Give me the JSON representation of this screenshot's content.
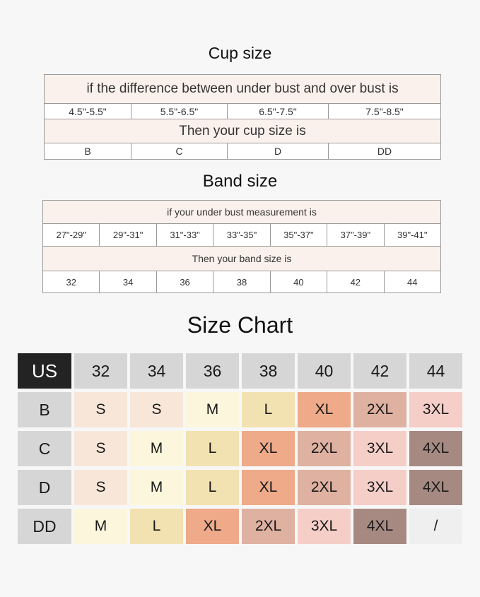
{
  "cup_size": {
    "title": "Cup size",
    "condition": "if the difference between under bust and over bust is",
    "ranges": [
      "4.5\"-5.5\"",
      "5.5\"-6.5\"",
      "6.5\"-7.5\"",
      "7.5\"-8.5\""
    ],
    "result": "Then your cup size is",
    "cups": [
      "B",
      "C",
      "D",
      "DD"
    ]
  },
  "band_size": {
    "title": "Band size",
    "condition": "if your under bust measurement is",
    "ranges": [
      "27\"-29\"",
      "29\"-31\"",
      "31\"-33\"",
      "33\"-35\"",
      "35\"-37\"",
      "37\"-39\"",
      "39\"-41\""
    ],
    "result": "Then your band size is",
    "bands": [
      "32",
      "34",
      "36",
      "38",
      "40",
      "42",
      "44"
    ]
  },
  "size_chart": {
    "title": "Size Chart",
    "corner": "US",
    "columns": [
      "32",
      "34",
      "36",
      "38",
      "40",
      "42",
      "44"
    ],
    "rows": [
      {
        "cup": "B",
        "sizes": [
          "S",
          "S",
          "M",
          "L",
          "XL",
          "2XL",
          "3XL"
        ]
      },
      {
        "cup": "C",
        "sizes": [
          "S",
          "M",
          "L",
          "XL",
          "2XL",
          "3XL",
          "4XL"
        ]
      },
      {
        "cup": "D",
        "sizes": [
          "S",
          "M",
          "L",
          "XL",
          "2XL",
          "3XL",
          "4XL"
        ]
      },
      {
        "cup": "DD",
        "sizes": [
          "M",
          "L",
          "XL",
          "2XL",
          "3XL",
          "4XL",
          "/"
        ]
      }
    ],
    "colors": {
      "S": "#f8e7d9",
      "M": "#fcf6dc",
      "L": "#f2e2b1",
      "XL": "#eeaa89",
      "2XL": "#dfb1a1",
      "3XL": "#f6cec8",
      "4XL": "#a68a82",
      "/": "#efefef",
      "header": "#d6d6d6",
      "corner": "#232323"
    }
  }
}
